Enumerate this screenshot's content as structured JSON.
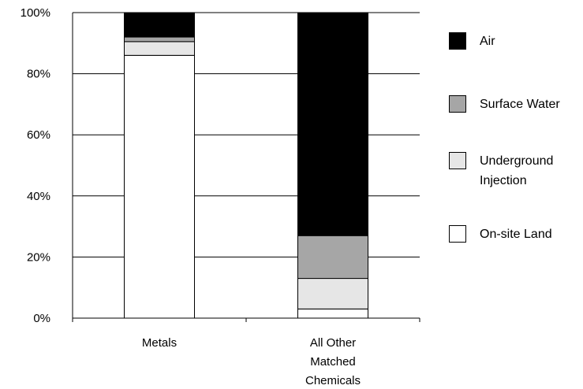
{
  "chart_data": {
    "type": "bar",
    "stacked": true,
    "categories": [
      "Metals",
      "All Other\nMatched\nChemicals"
    ],
    "series": [
      {
        "name": "On-site Land",
        "color": "#ffffff",
        "values": [
          86,
          3
        ]
      },
      {
        "name": "Underground\nInjection",
        "color": "#e6e6e6",
        "values": [
          4.5,
          10
        ]
      },
      {
        "name": "Surface Water",
        "color": "#a6a6a6",
        "values": [
          1.5,
          14
        ]
      },
      {
        "name": "Air",
        "color": "#000000",
        "values": [
          8,
          73
        ]
      }
    ],
    "ylim": [
      0,
      100
    ],
    "yticks": [
      "0%",
      "20%",
      "40%",
      "60%",
      "80%",
      "100%"
    ],
    "grid": true,
    "legend": "right",
    "title": "",
    "xlabel": "",
    "ylabel": ""
  }
}
